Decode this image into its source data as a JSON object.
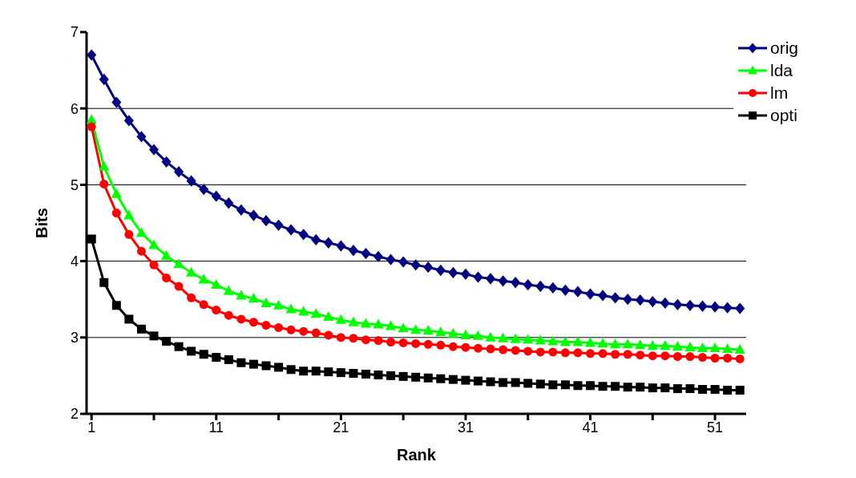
{
  "chart_data": {
    "type": "line",
    "xlabel": "Rank",
    "ylabel": "Bits",
    "x": [
      1,
      2,
      3,
      4,
      5,
      6,
      7,
      8,
      9,
      10,
      11,
      12,
      13,
      14,
      15,
      16,
      17,
      18,
      19,
      20,
      21,
      22,
      23,
      24,
      25,
      26,
      27,
      28,
      29,
      30,
      31,
      32,
      33,
      34,
      35,
      36,
      37,
      38,
      39,
      40,
      41,
      42,
      43,
      44,
      45,
      46,
      47,
      48,
      49,
      50,
      51,
      52,
      53
    ],
    "xlim": [
      0.6,
      53.5
    ],
    "xticks": [
      1,
      {
        "value": 6,
        "label": null
      },
      11,
      {
        "value": 16,
        "label": null
      },
      21,
      {
        "value": 26,
        "label": null
      },
      31,
      {
        "value": 36,
        "label": null
      },
      41,
      {
        "value": 46,
        "label": null
      },
      51
    ],
    "ylim": [
      2,
      7
    ],
    "yticks": [
      2,
      3,
      4,
      5,
      6,
      7
    ],
    "grid": "y",
    "legend": "top right",
    "line_style": "solid",
    "series": [
      {
        "name": "orig",
        "color": "#000080",
        "marker": "diamond",
        "values": [
          6.7,
          6.38,
          6.08,
          5.84,
          5.63,
          5.46,
          5.3,
          5.17,
          5.05,
          4.94,
          4.85,
          4.76,
          4.67,
          4.6,
          4.53,
          4.47,
          4.41,
          4.35,
          4.28,
          4.24,
          4.2,
          4.14,
          4.1,
          4.06,
          4.02,
          3.99,
          3.95,
          3.92,
          3.88,
          3.85,
          3.83,
          3.79,
          3.77,
          3.74,
          3.72,
          3.69,
          3.67,
          3.65,
          3.62,
          3.6,
          3.57,
          3.55,
          3.52,
          3.5,
          3.49,
          3.47,
          3.45,
          3.43,
          3.42,
          3.41,
          3.4,
          3.39,
          3.38
        ]
      },
      {
        "name": "lda",
        "color": "#00ff00",
        "marker": "triangle",
        "values": [
          5.85,
          5.24,
          4.88,
          4.6,
          4.37,
          4.21,
          4.07,
          3.96,
          3.85,
          3.76,
          3.69,
          3.61,
          3.55,
          3.51,
          3.45,
          3.42,
          3.37,
          3.34,
          3.31,
          3.27,
          3.23,
          3.2,
          3.18,
          3.17,
          3.15,
          3.12,
          3.1,
          3.09,
          3.07,
          3.05,
          3.03,
          3.02,
          3.0,
          2.99,
          2.98,
          2.97,
          2.96,
          2.95,
          2.94,
          2.94,
          2.93,
          2.92,
          2.91,
          2.91,
          2.9,
          2.89,
          2.89,
          2.88,
          2.87,
          2.86,
          2.86,
          2.85,
          2.84
        ]
      },
      {
        "name": "lm",
        "color": "#ff0000",
        "marker": "circle",
        "values": [
          5.76,
          5.01,
          4.63,
          4.35,
          4.13,
          3.95,
          3.78,
          3.67,
          3.52,
          3.43,
          3.36,
          3.29,
          3.24,
          3.2,
          3.16,
          3.13,
          3.1,
          3.08,
          3.06,
          3.03,
          3.0,
          2.99,
          2.97,
          2.96,
          2.94,
          2.93,
          2.92,
          2.91,
          2.9,
          2.88,
          2.87,
          2.86,
          2.85,
          2.84,
          2.83,
          2.82,
          2.81,
          2.81,
          2.8,
          2.8,
          2.79,
          2.79,
          2.78,
          2.78,
          2.77,
          2.76,
          2.76,
          2.75,
          2.75,
          2.74,
          2.73,
          2.73,
          2.72
        ]
      },
      {
        "name": "opti",
        "color": "#000000",
        "marker": "square",
        "values": [
          4.29,
          3.72,
          3.42,
          3.24,
          3.11,
          3.02,
          2.95,
          2.88,
          2.82,
          2.78,
          2.74,
          2.71,
          2.67,
          2.65,
          2.63,
          2.61,
          2.58,
          2.56,
          2.56,
          2.55,
          2.54,
          2.53,
          2.52,
          2.51,
          2.5,
          2.49,
          2.48,
          2.47,
          2.46,
          2.45,
          2.44,
          2.43,
          2.42,
          2.41,
          2.41,
          2.4,
          2.39,
          2.38,
          2.38,
          2.37,
          2.37,
          2.36,
          2.36,
          2.35,
          2.35,
          2.34,
          2.34,
          2.33,
          2.33,
          2.32,
          2.32,
          2.31,
          2.31
        ]
      }
    ]
  }
}
